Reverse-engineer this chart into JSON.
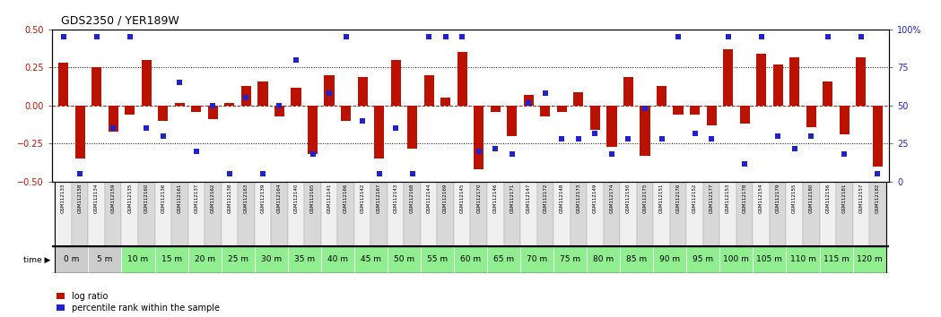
{
  "title": "GDS2350 / YER189W",
  "bar_color": "#BB1100",
  "dot_color": "#2222CC",
  "ylim_left": [
    -0.5,
    0.5
  ],
  "ylim_right": [
    0,
    100
  ],
  "yticks_left": [
    -0.5,
    -0.25,
    0.0,
    0.25,
    0.5
  ],
  "yticks_right": [
    0,
    25,
    50,
    75,
    100
  ],
  "hlines": [
    -0.25,
    0.0,
    0.25
  ],
  "gsm_labels": [
    "GSM112133",
    "GSM112158",
    "GSM112134",
    "GSM112159",
    "GSM112135",
    "GSM112160",
    "GSM112136",
    "GSM112161",
    "GSM112137",
    "GSM112162",
    "GSM112138",
    "GSM112163",
    "GSM112139",
    "GSM112164",
    "GSM112140",
    "GSM112165",
    "GSM112141",
    "GSM112166",
    "GSM112142",
    "GSM112167",
    "GSM112143",
    "GSM112168",
    "GSM112144",
    "GSM112169",
    "GSM112145",
    "GSM112170",
    "GSM112146",
    "GSM112171",
    "GSM112147",
    "GSM112172",
    "GSM112148",
    "GSM112173",
    "GSM112149",
    "GSM112174",
    "GSM112150",
    "GSM112175",
    "GSM112151",
    "GSM112176",
    "GSM112152",
    "GSM112177",
    "GSM112153",
    "GSM112178",
    "GSM112154",
    "GSM112179",
    "GSM112155",
    "GSM112180",
    "GSM112156",
    "GSM112181",
    "GSM112157",
    "GSM112182"
  ],
  "time_labels": [
    "0 m",
    "5 m",
    "10 m",
    "15 m",
    "20 m",
    "25 m",
    "30 m",
    "35 m",
    "40 m",
    "45 m",
    "50 m",
    "55 m",
    "60 m",
    "65 m",
    "70 m",
    "75 m",
    "80 m",
    "85 m",
    "90 m",
    "95 m",
    "100 m",
    "105 m",
    "110 m",
    "115 m",
    "120 m"
  ],
  "log_ratio": [
    0.28,
    -0.35,
    0.25,
    -0.17,
    -0.06,
    0.3,
    -0.1,
    0.02,
    -0.04,
    -0.09,
    0.02,
    0.13,
    0.16,
    -0.07,
    0.12,
    -0.32,
    0.2,
    -0.1,
    0.19,
    -0.35,
    0.3,
    -0.28,
    0.2,
    0.05,
    0.35,
    -0.42,
    -0.04,
    -0.2,
    0.07,
    -0.07,
    -0.04,
    0.09,
    -0.16,
    -0.27,
    0.19,
    -0.33,
    0.13,
    -0.06,
    -0.06,
    -0.13,
    0.37,
    -0.12,
    0.34,
    0.27,
    0.32,
    -0.14,
    0.16,
    -0.19,
    0.32,
    -0.4
  ],
  "percentile": [
    95,
    5,
    95,
    35,
    95,
    35,
    30,
    65,
    20,
    50,
    5,
    55,
    5,
    50,
    80,
    18,
    58,
    95,
    40,
    5,
    35,
    5,
    95,
    95,
    95,
    20,
    22,
    18,
    52,
    58,
    28,
    28,
    32,
    18,
    28,
    48,
    28,
    95,
    32,
    28,
    95,
    12,
    95,
    30,
    22,
    30,
    95,
    18,
    95,
    5
  ],
  "legend_log_ratio": "log ratio",
  "legend_percentile": "percentile rank within the sample",
  "time_bg_gray": "#cccccc",
  "time_bg_green": "#90EE90",
  "gsm_bg_light": "#f0f0f0",
  "gsm_bg_dark": "#d8d8d8",
  "time_divider_color": "#000000"
}
